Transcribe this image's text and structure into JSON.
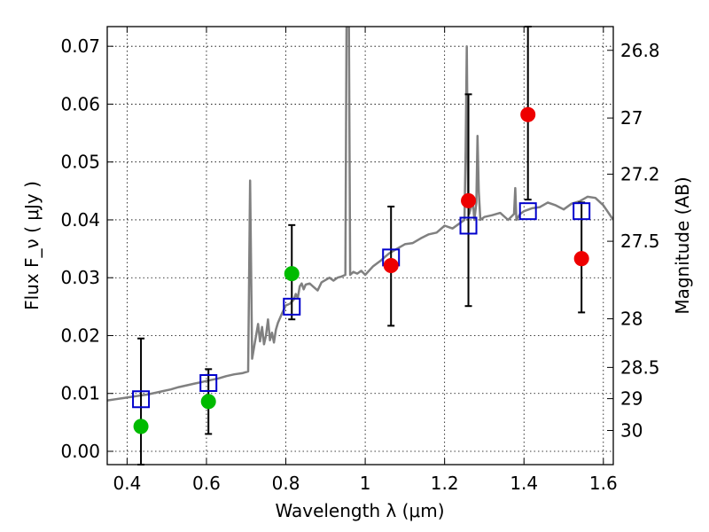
{
  "chart_data": {
    "type": "scatter",
    "title": "",
    "xlabel": "Wavelength  λ (μm)",
    "ylabel": "Flux  F_ν  ( μJy )",
    "y2label": "Magnitude (AB)",
    "xlim": [
      0.35,
      1.625
    ],
    "ylim": [
      -0.0023,
      0.0734
    ],
    "grid": true,
    "x_ticks": [
      0.4,
      0.6,
      0.8,
      1.0,
      1.2,
      1.4,
      1.6
    ],
    "x_tick_labels": [
      "0.4",
      "0.6",
      "0.8",
      "1",
      "1.2",
      "1.4",
      "1.6"
    ],
    "y_ticks": [
      0.0,
      0.01,
      0.02,
      0.03,
      0.04,
      0.05,
      0.06,
      0.07
    ],
    "y_tick_labels": [
      "0.00",
      "0.01",
      "0.02",
      "0.03",
      "0.04",
      "0.05",
      "0.06",
      "0.07"
    ],
    "y2_ticks": [
      {
        "label": "26.8",
        "flux": 0.0693
      },
      {
        "label": "27",
        "flux": 0.0576
      },
      {
        "label": "27.2",
        "flux": 0.0479
      },
      {
        "label": "27.5",
        "flux": 0.0363
      },
      {
        "label": "28",
        "flux": 0.0229
      },
      {
        "label": "28.5",
        "flux": 0.0145
      },
      {
        "label": "29",
        "flux": 0.0091
      },
      {
        "label": "30",
        "flux": 0.0036
      }
    ],
    "series": [
      {
        "kind": "spectrum",
        "color": "#808080",
        "x": [
          0.35,
          0.37,
          0.39,
          0.41,
          0.43,
          0.45,
          0.47,
          0.49,
          0.51,
          0.53,
          0.55,
          0.57,
          0.59,
          0.61,
          0.63,
          0.65,
          0.67,
          0.69,
          0.705,
          0.71,
          0.715,
          0.72,
          0.73,
          0.735,
          0.74,
          0.745,
          0.75,
          0.755,
          0.76,
          0.765,
          0.77,
          0.775,
          0.78,
          0.79,
          0.8,
          0.81,
          0.82,
          0.825,
          0.83,
          0.835,
          0.84,
          0.845,
          0.85,
          0.86,
          0.87,
          0.88,
          0.89,
          0.9,
          0.91,
          0.92,
          0.93,
          0.94,
          0.95,
          0.953,
          0.955,
          0.957,
          0.959,
          0.962,
          0.97,
          0.98,
          0.99,
          1.0,
          1.02,
          1.04,
          1.06,
          1.08,
          1.1,
          1.12,
          1.14,
          1.16,
          1.18,
          1.2,
          1.22,
          1.24,
          1.25,
          1.253,
          1.256,
          1.259,
          1.262,
          1.266,
          1.27,
          1.275,
          1.28,
          1.283,
          1.286,
          1.29,
          1.3,
          1.32,
          1.34,
          1.36,
          1.375,
          1.378,
          1.381,
          1.39,
          1.4,
          1.42,
          1.44,
          1.46,
          1.48,
          1.5,
          1.52,
          1.54,
          1.56,
          1.58,
          1.6,
          1.625
        ],
        "y": [
          0.0088,
          0.009,
          0.0092,
          0.0094,
          0.0096,
          0.0098,
          0.0101,
          0.0104,
          0.0107,
          0.0111,
          0.0114,
          0.0117,
          0.012,
          0.0123,
          0.0126,
          0.013,
          0.0133,
          0.0135,
          0.0138,
          0.0468,
          0.016,
          0.018,
          0.022,
          0.019,
          0.0215,
          0.0185,
          0.02,
          0.0228,
          0.0192,
          0.0205,
          0.0188,
          0.021,
          0.0222,
          0.0238,
          0.0252,
          0.0255,
          0.0262,
          0.0272,
          0.0265,
          0.0285,
          0.029,
          0.028,
          0.0288,
          0.029,
          0.0284,
          0.0278,
          0.0292,
          0.0296,
          0.03,
          0.0295,
          0.03,
          0.0302,
          0.0305,
          0.0734,
          0.0734,
          0.0734,
          0.0734,
          0.0305,
          0.031,
          0.0307,
          0.0312,
          0.0305,
          0.032,
          0.033,
          0.0342,
          0.035,
          0.0358,
          0.036,
          0.0368,
          0.0375,
          0.0378,
          0.039,
          0.0385,
          0.0395,
          0.04,
          0.052,
          0.07,
          0.045,
          0.041,
          0.042,
          0.044,
          0.04,
          0.043,
          0.0545,
          0.045,
          0.04,
          0.0405,
          0.0408,
          0.0412,
          0.04,
          0.041,
          0.0455,
          0.04,
          0.041,
          0.0415,
          0.042,
          0.0422,
          0.043,
          0.0425,
          0.0418,
          0.0428,
          0.0432,
          0.044,
          0.0438,
          0.0425,
          0.04
        ]
      },
      {
        "kind": "model-magnitudes",
        "marker": "open-square",
        "color": "#0000cc",
        "x": [
          0.435,
          0.605,
          0.815,
          1.065,
          1.26,
          1.41,
          1.545
        ],
        "y": [
          0.009,
          0.0118,
          0.025,
          0.0335,
          0.039,
          0.0415,
          0.0415
        ]
      },
      {
        "kind": "detections",
        "marker": "filled-circle",
        "color": "#00bb00",
        "x": [
          0.435,
          0.605,
          0.815
        ],
        "y": [
          0.0043,
          0.0086,
          0.0307
        ],
        "yerr_low": [
          -0.0023,
          0.003,
          0.0228
        ],
        "yerr_high": [
          0.0195,
          0.0142,
          0.0391
        ]
      },
      {
        "kind": "detections",
        "marker": "filled-circle",
        "color": "#ee0000",
        "x": [
          1.065,
          1.26,
          1.41,
          1.545
        ],
        "y": [
          0.0321,
          0.0433,
          0.0582,
          0.0333
        ],
        "yerr_low": [
          0.0217,
          0.0251,
          0.0435,
          0.024
        ],
        "yerr_high": [
          0.0423,
          0.0617,
          0.0734,
          0.043
        ]
      }
    ]
  }
}
